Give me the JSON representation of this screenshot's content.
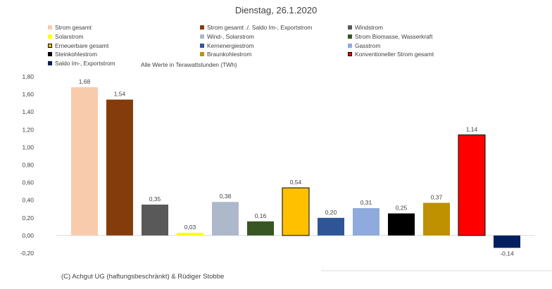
{
  "chart_data": {
    "type": "bar",
    "title": "Dienstag, 26.1.2020",
    "note": "Alle Werte in Terawattstunden (TWh)",
    "footer": "(C) Achgut UG (haftungsbeschränkt) & Rüdiger Stobbe",
    "ylim": [
      -0.2,
      1.8
    ],
    "yticks": [
      "1,80",
      "1,60",
      "1,40",
      "1,20",
      "1,00",
      "0,80",
      "0,60",
      "0,40",
      "0,20",
      "0,00",
      "-0,20"
    ],
    "legend_placement": "top",
    "grid": false,
    "categories": [
      "Strom gesamt",
      "Strom gesamt ./. Saldo Im-, Exportstrom",
      "Windstrom",
      "Solarstrom",
      "Wind-, Solarstrom",
      "Strom Biomasse, Wasserkraft",
      "Erneuerbare gesamt",
      "Kernenergiestrom",
      "Gasstrom",
      "Steinkohlestrom",
      "Braunkohlestrom",
      "Konventioneller Strom gesamt",
      "Saldo Im-, Exportstrom"
    ],
    "values": [
      1.68,
      1.54,
      0.35,
      0.03,
      0.38,
      0.16,
      0.54,
      0.2,
      0.31,
      0.25,
      0.37,
      1.14,
      -0.14
    ],
    "value_labels": [
      "1,68",
      "1,54",
      "0,35",
      "0,03",
      "0,38",
      "0,16",
      "0,54",
      "0,20",
      "0,31",
      "0,25",
      "0,37",
      "1,14",
      "-0,14"
    ],
    "colors": [
      "#F8CBAD",
      "#843C0C",
      "#595959",
      "#FFFF00",
      "#ADB9CA",
      "#375623",
      "#FFC000",
      "#2F5597",
      "#8FAADC",
      "#000000",
      "#BF9000",
      "#FF0000",
      "#002060"
    ],
    "bar_outlines": [
      "",
      "",
      "",
      "",
      "",
      "",
      "#000000",
      "",
      "",
      "",
      "",
      "#000000",
      ""
    ]
  }
}
